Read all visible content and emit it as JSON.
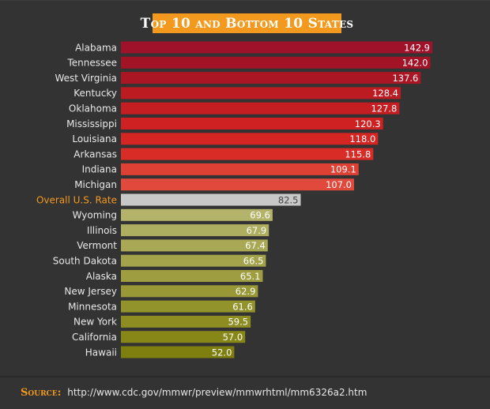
{
  "header": {
    "title": "Top 10 and Bottom 10 States"
  },
  "footer": {
    "source_label": "Source:",
    "source_url": "http://www.cdc.gov/mmwr/preview/mmwrhtml/mm6326a2.htm"
  },
  "colors": {
    "background": "#333333",
    "accent": "#f39a1e",
    "overall_bar": "#c8c8c8"
  },
  "chart_data": {
    "type": "bar",
    "orientation": "horizontal",
    "title": "Top 10 and Bottom 10 States",
    "xlabel": "",
    "ylabel": "",
    "grid": false,
    "legend": "none",
    "xlim": [
      0,
      150
    ],
    "highlighted_category": "Overall U.S. Rate",
    "categories": [
      "Alabama",
      "Tennessee",
      "West Virginia",
      "Kentucky",
      "Oklahoma",
      "Mississippi",
      "Louisiana",
      "Arkansas",
      "Indiana",
      "Michigan",
      "Overall U.S. Rate",
      "Wyoming",
      "Illinois",
      "Vermont",
      "South Dakota",
      "Alaska",
      "New Jersey",
      "Minnesota",
      "New York",
      "California",
      "Hawaii"
    ],
    "value_labels": [
      "142.9",
      "142.0",
      "137.6",
      "128.4",
      "127.8",
      "120.3",
      "118.0",
      "115.8",
      "109.1",
      "107.0",
      "82.5",
      "69.6",
      "67.9",
      "67.4",
      "66.5",
      "65.1",
      "62.9",
      "61.6",
      "59.5",
      "57.0",
      "52.0"
    ],
    "values": [
      142.9,
      142.0,
      137.6,
      128.4,
      127.8,
      120.3,
      118.0,
      115.8,
      109.1,
      107.0,
      82.5,
      69.6,
      67.9,
      67.4,
      66.5,
      65.1,
      62.9,
      61.6,
      59.5,
      57.0,
      52.0
    ],
    "bar_colors": [
      "#a0112a",
      "#a31326",
      "#ab1624",
      "#bd1b22",
      "#c41e22",
      "#cf2122",
      "#d42522",
      "#d92c26",
      "#de4034",
      "#e0493c",
      "#c8c8c8",
      "#b4b36a",
      "#aeae60",
      "#a9a955",
      "#a3a34b",
      "#9e9e40",
      "#989836",
      "#93932c",
      "#8d8d22",
      "#878718",
      "#7f7f10"
    ]
  }
}
